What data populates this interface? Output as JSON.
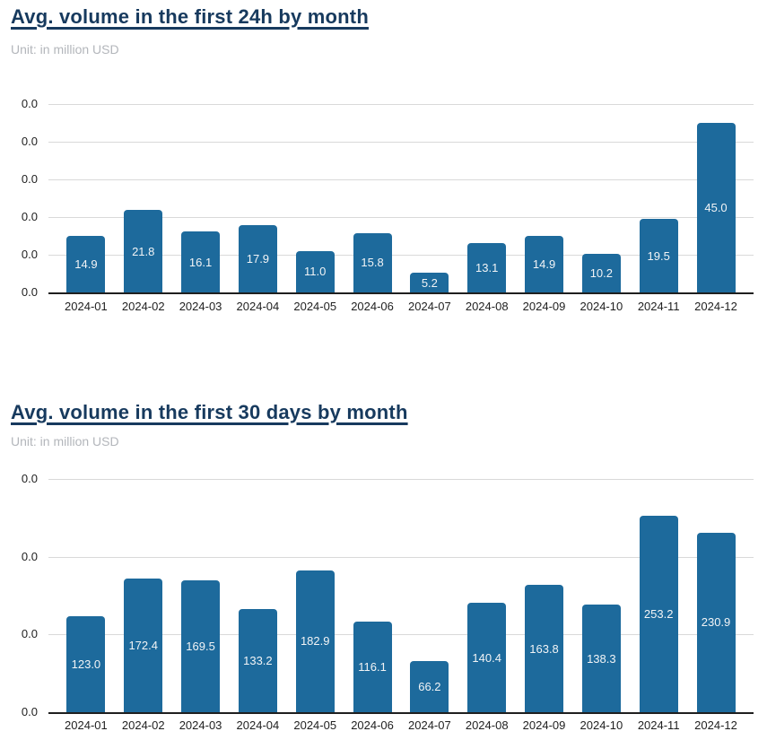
{
  "theme": {
    "background": "#ffffff",
    "bar_color": "#1d6a9c",
    "value_label_color": "#f2f4f6",
    "title_color": "#173a5e",
    "subtitle_color": "#b3b6bb",
    "grid_color": "#d9d9d9",
    "axis_color": "#1f1f1f",
    "tick_label_color": "#1f1f1f"
  },
  "chart_data": [
    {
      "type": "bar",
      "title": "Avg. volume in the first 24h by month",
      "subtitle": "Unit: in million USD",
      "xlabel": "",
      "ylabel": "",
      "categories": [
        "2024-01",
        "2024-02",
        "2024-03",
        "2024-04",
        "2024-05",
        "2024-06",
        "2024-07",
        "2024-08",
        "2024-09",
        "2024-10",
        "2024-11",
        "2024-12"
      ],
      "values": [
        14.9,
        21.8,
        16.1,
        17.9,
        11.0,
        15.8,
        5.2,
        13.1,
        14.9,
        10.2,
        19.5,
        45.0
      ],
      "value_labels": [
        "14.9",
        "21.8",
        "16.1",
        "17.9",
        "11.0",
        "15.8",
        "5.2",
        "13.1",
        "14.9",
        "10.2",
        "19.5",
        "45.0"
      ],
      "ytick_labels": [
        "0.0",
        "0.0",
        "0.0",
        "0.0",
        "0.0",
        "0.0"
      ],
      "ylim": [
        0,
        50
      ],
      "grid": true,
      "legend": false
    },
    {
      "type": "bar",
      "title": "Avg. volume in the first 30 days by month",
      "subtitle": "Unit: in million USD",
      "xlabel": "",
      "ylabel": "",
      "categories": [
        "2024-01",
        "2024-02",
        "2024-03",
        "2024-04",
        "2024-05",
        "2024-06",
        "2024-07",
        "2024-08",
        "2024-09",
        "2024-10",
        "2024-11",
        "2024-12"
      ],
      "values": [
        123.0,
        172.4,
        169.5,
        133.2,
        182.9,
        116.1,
        66.2,
        140.4,
        163.8,
        138.3,
        253.2,
        230.9
      ],
      "value_labels": [
        "123.0",
        "172.4",
        "169.5",
        "133.2",
        "182.9",
        "116.1",
        "66.2",
        "140.4",
        "163.8",
        "138.3",
        "253.2",
        "230.9"
      ],
      "ytick_labels": [
        "0.0",
        "0.0",
        "0.0",
        "0.0"
      ],
      "ylim": [
        0,
        300
      ],
      "grid": true,
      "legend": false
    }
  ]
}
